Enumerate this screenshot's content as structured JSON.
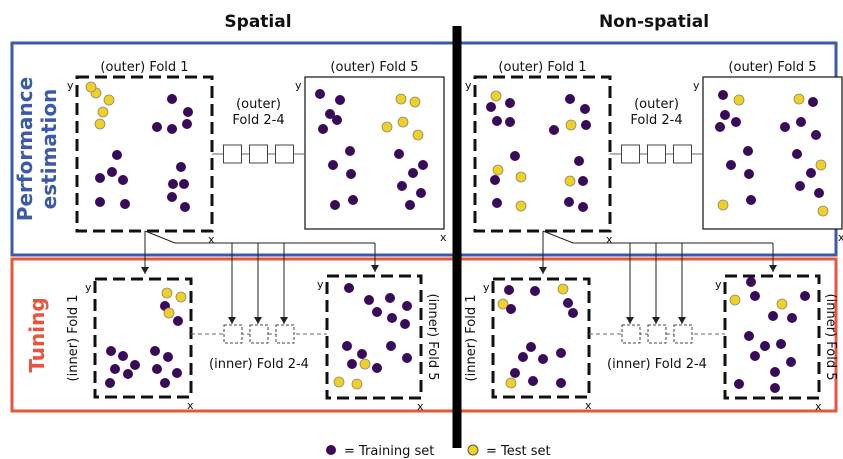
{
  "headings": {
    "left": "Spatial",
    "right": "Non-spatial"
  },
  "rows": {
    "top": "Performance\nestimation",
    "bottom": "Tuning"
  },
  "fold_labels": {
    "outer_first": "(outer) Fold 1",
    "outer_last": "(outer) Fold 5",
    "outer_middle": "(outer)\nFold 2-4",
    "inner_first": "(inner) Fold 1",
    "inner_last": "(inner) Fold 5",
    "inner_middle": "(inner) Fold 2-4"
  },
  "axis": {
    "x": "x",
    "y": "y"
  },
  "legend": [
    {
      "label": "= Training set",
      "color": "#3a0a5a"
    },
    {
      "label": "= Test set",
      "color": "#f0d020"
    }
  ],
  "colors": {
    "performance_border": "#3b5ba8",
    "performance_text": "#3b5ba8",
    "tuning_border": "#e8543c",
    "tuning_text": "#e8543c",
    "training": "#3a0a5a",
    "test": "#f0d020",
    "divider": "#000000"
  }
}
